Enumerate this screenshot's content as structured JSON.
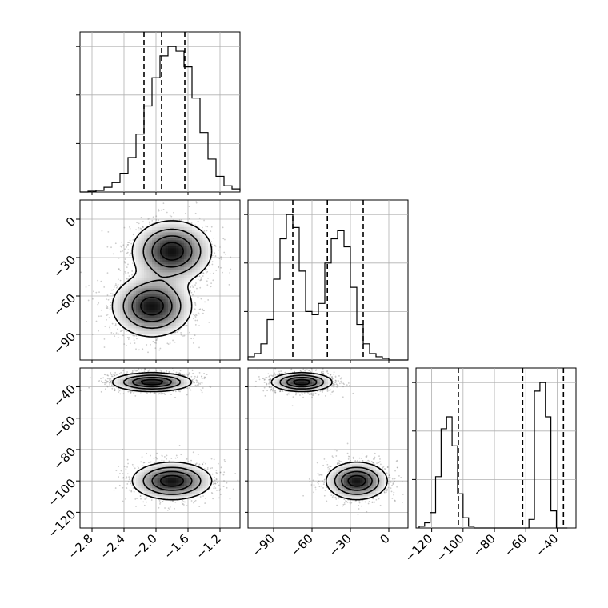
{
  "chart_data": {
    "type": "corner",
    "grid": true,
    "parameters": [
      {
        "range": [
          -2.95,
          -0.95
        ],
        "tick_values": [
          -2.8,
          -2.4,
          -2.0,
          -1.6,
          -1.2
        ],
        "tick_labels": [
          "−2.8",
          "−2.4",
          "−2.0",
          "−1.6",
          "−1.2"
        ],
        "quantiles": [
          -2.15,
          -1.93,
          -1.64
        ]
      },
      {
        "range": [
          -110,
          15
        ],
        "tick_values": [
          -90,
          -60,
          -30,
          0
        ],
        "tick_labels": [
          "−90",
          "−60",
          "−30",
          "0"
        ],
        "quantiles": [
          -75,
          -48,
          -20
        ]
      },
      {
        "range": [
          -130,
          -28
        ],
        "tick_values": [
          -120,
          -100,
          -80,
          -60,
          -40
        ],
        "tick_labels": [
          "−120",
          "−100",
          "−80",
          "−60",
          "−40"
        ],
        "quantiles": [
          -103,
          -62,
          -36
        ]
      }
    ],
    "histograms": [
      {
        "param": 0,
        "bin_width": 0.1,
        "edges_start": -2.95,
        "counts": [
          0,
          0.005,
          0.01,
          0.03,
          0.06,
          0.12,
          0.22,
          0.37,
          0.55,
          0.73,
          0.87,
          0.93,
          0.9,
          0.8,
          0.6,
          0.38,
          0.21,
          0.1,
          0.04,
          0.02,
          0.005
        ]
      },
      {
        "param": 1,
        "bin_width": 5,
        "edges_start": -110,
        "counts": [
          0.02,
          0.04,
          0.1,
          0.25,
          0.5,
          0.75,
          0.9,
          0.82,
          0.55,
          0.3,
          0.28,
          0.35,
          0.6,
          0.75,
          0.8,
          0.7,
          0.45,
          0.22,
          0.1,
          0.04,
          0.02,
          0.01,
          0.0,
          0.0,
          0.0
        ]
      },
      {
        "param": 2,
        "bin_width": 3.5,
        "edges_start": -128,
        "counts": [
          0.01,
          0.03,
          0.09,
          0.3,
          0.58,
          0.65,
          0.48,
          0.2,
          0.06,
          0.01,
          0.0,
          0.0,
          0.0,
          0.0,
          0.0,
          0.0,
          0.0,
          0.0,
          0.0,
          0.0,
          0.05,
          0.8,
          0.85,
          0.65,
          0.1,
          0.0,
          0.0
        ]
      }
    ],
    "components": [
      {
        "weight": 0.5,
        "mean": [
          -2.05,
          -68,
          -37
        ],
        "sd": [
          0.25,
          12,
          3
        ]
      },
      {
        "weight": 0.5,
        "mean": [
          -1.8,
          -25,
          -100
        ],
        "sd": [
          0.25,
          12,
          6
        ]
      }
    ]
  }
}
